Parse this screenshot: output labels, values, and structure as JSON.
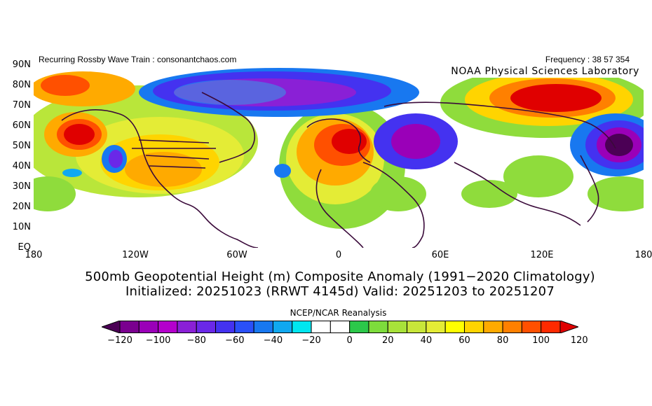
{
  "header": {
    "left": "Recurring Rossby Wave Train : consonantchaos.com",
    "right": "Frequency : 38 57 354"
  },
  "overlay_label": "NOAA Physical Sciences Laboratory",
  "lat_labels": [
    "90N",
    "80N",
    "70N",
    "60N",
    "50N",
    "40N",
    "30N",
    "20N",
    "10N",
    "EQ"
  ],
  "lon_labels": [
    "180",
    "120W",
    "60W",
    "0",
    "60E",
    "120E",
    "180"
  ],
  "title_line1": "500mb Geopotential Height (m) Composite Anomaly (1991−2020 Climatology)",
  "title_line2": "Initialized: 20251023 (RRWT 4145d) Valid: 20251203 to 20251207",
  "source": "NCEP/NCAR Reanalysis",
  "colorbar": {
    "labels": [
      "−120",
      "−100",
      "−80",
      "−60",
      "−40",
      "−20",
      "0",
      "20",
      "40",
      "60",
      "80",
      "100",
      "120"
    ],
    "colors": [
      "#4b0055",
      "#7a008f",
      "#9a00b8",
      "#b400cc",
      "#8a20d6",
      "#6a28e8",
      "#4432f0",
      "#2a50f8",
      "#1878f0",
      "#10a8f0",
      "#00e6f0",
      "#ffffff",
      "#ffffff",
      "#2cc84a",
      "#7ddc3c",
      "#a8e23a",
      "#c8e63a",
      "#e4ec36",
      "#ffff00",
      "#ffd400",
      "#ffaa00",
      "#ff8000",
      "#ff5000",
      "#ff2a00",
      "#e00000"
    ]
  }
}
